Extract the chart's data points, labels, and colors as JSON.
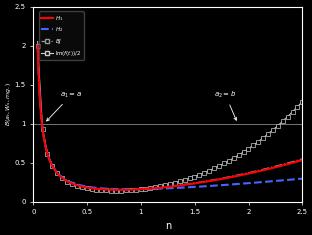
{
  "xlabel": "n",
  "ylabel": "$B(a_t, W_s, mg.)$",
  "xlim": [
    0,
    2.5
  ],
  "ylim": [
    0,
    2.5
  ],
  "yticks": [
    0,
    0.5,
    1,
    1.5,
    2,
    2.5
  ],
  "xticks": [
    0,
    0.5,
    1,
    1.5,
    2,
    2.5
  ],
  "ytick_labels": [
    "0",
    "0.5",
    "1",
    "1.5",
    "2",
    "2.5"
  ],
  "xtick_labels": [
    "0",
    "0.5",
    "1",
    "1.5",
    "2",
    "2.5"
  ],
  "bg_color": "#000000",
  "ax_color": "#ffffff",
  "hline_y": 1.0,
  "hline_color": "#777777",
  "legend_labels": [
    "$H_1$",
    "$H_2$",
    "$BJ$",
    "$\\mathrm{Im}(f(t))/2$"
  ],
  "ann1_text": "$a_1 = a$",
  "ann2_text": "$a_2 = b$"
}
